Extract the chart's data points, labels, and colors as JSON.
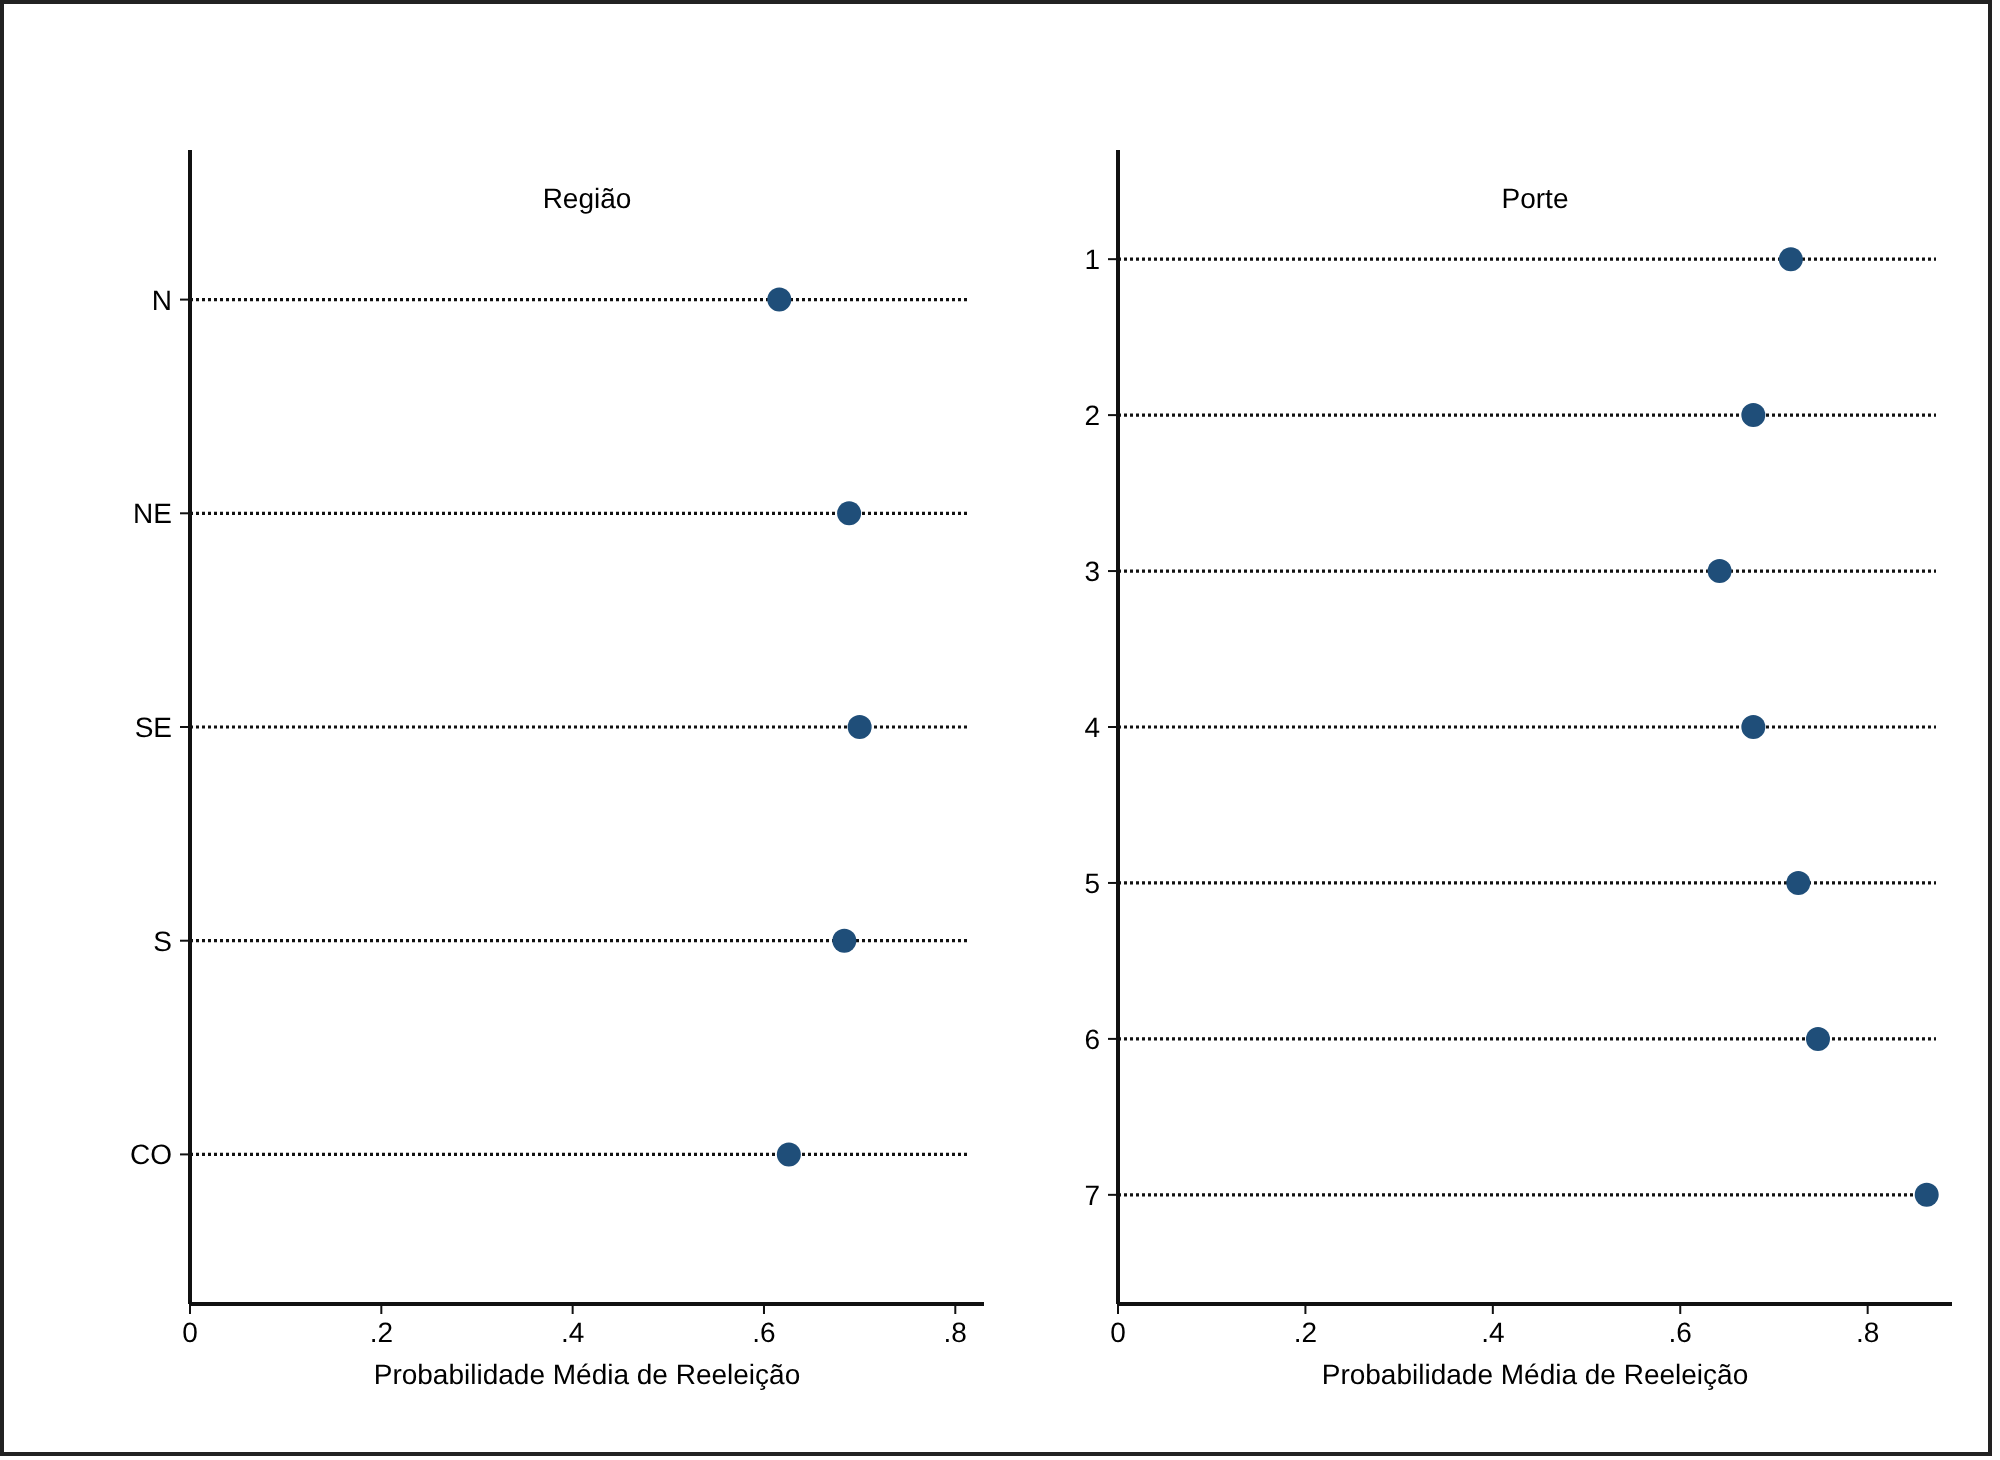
{
  "chart_data": [
    {
      "type": "scatter",
      "orientation": "horizontal",
      "title": "Região",
      "xlabel": "Probabilidade Média de Reeleição",
      "categories": [
        "N",
        "NE",
        "SE",
        "S",
        "CO"
      ],
      "values": [
        0.616,
        0.689,
        0.7,
        0.684,
        0.626
      ],
      "color": "#1f4e79",
      "xlim": [
        0,
        0.83
      ],
      "xticks": [
        0,
        {
          "value": 0.2,
          "label": ".2"
        },
        {
          "value": 0.4,
          "label": ".4"
        },
        {
          "value": 0.6,
          "label": ".6"
        },
        {
          "value": 0.8,
          "label": ".8"
        }
      ],
      "grid": "y",
      "line_style": "dotted",
      "marker": "circle"
    },
    {
      "type": "scatter",
      "orientation": "horizontal",
      "title": "Porte",
      "xlabel": "Probabilidade Média de Reeleição",
      "categories": [
        "1",
        "2",
        "3",
        "4",
        "5",
        "6",
        "7"
      ],
      "values": [
        0.718,
        0.678,
        0.642,
        0.678,
        0.726,
        0.747,
        0.863
      ],
      "color": "#1f4e79",
      "xlim": [
        0,
        0.89
      ],
      "xticks": [
        0,
        {
          "value": 0.2,
          "label": ".2"
        },
        {
          "value": 0.4,
          "label": ".4"
        },
        {
          "value": 0.6,
          "label": ".6"
        },
        {
          "value": 0.8,
          "label": ".8"
        }
      ],
      "grid": "y",
      "line_style": "dotted",
      "marker": "circle"
    }
  ]
}
